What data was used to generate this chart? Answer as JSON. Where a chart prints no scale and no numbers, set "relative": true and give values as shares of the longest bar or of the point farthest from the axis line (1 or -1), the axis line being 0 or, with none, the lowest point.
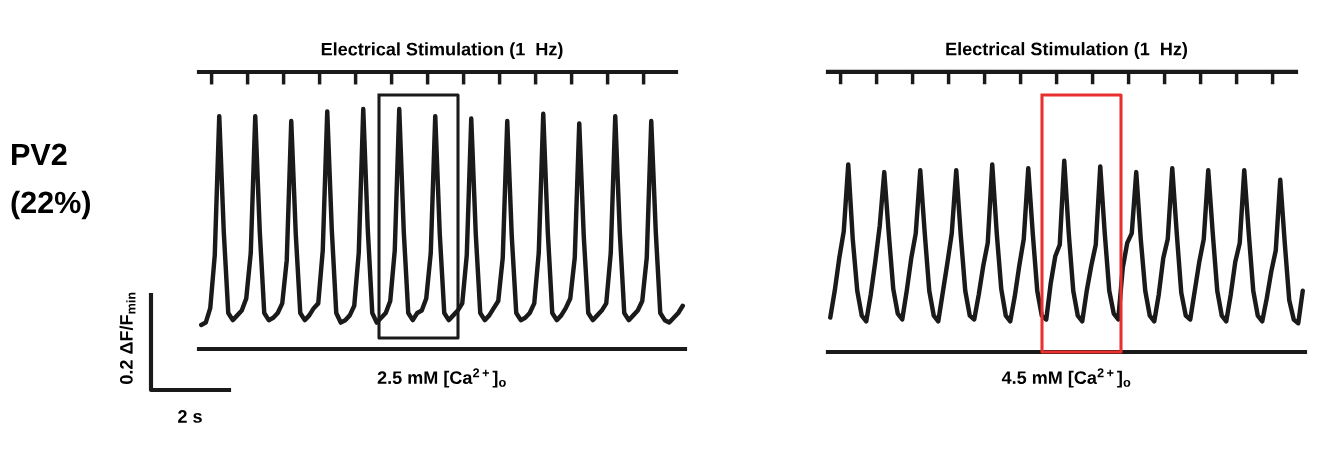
{
  "chart_data": [
    {
      "type": "line",
      "title": "Electrical Stimulation (1  Hz)",
      "relative": true,
      "marker": "none",
      "line_style": "solid",
      "annotations": [
        "2.5 mM [Ca$^{2+}$]$_{o}$",
        "PV2",
        "(22%)",
        "0.2 ΔF/F$_{min}$",
        "2 s"
      ],
      "categories": [
        null,
        null,
        null,
        null,
        null,
        null,
        null,
        null,
        null,
        null,
        null,
        null,
        null,
        null,
        null,
        null,
        null,
        null,
        null,
        null,
        null,
        null,
        null,
        null,
        null,
        null,
        null,
        null,
        null,
        null,
        null,
        null,
        null,
        null,
        null,
        null,
        null,
        null,
        null,
        null,
        null,
        null,
        null,
        null,
        null,
        null,
        null,
        null,
        null,
        null,
        null,
        null,
        null,
        null,
        null,
        null,
        null,
        null,
        null,
        null,
        null,
        null,
        null,
        null,
        null,
        null,
        null,
        null,
        null,
        null,
        null,
        null,
        null,
        null,
        null,
        null,
        null,
        null,
        null,
        null,
        null,
        null,
        null,
        null,
        null,
        null,
        null,
        null,
        null,
        null,
        null,
        null,
        null,
        null,
        null,
        null,
        null,
        null,
        null,
        null,
        null,
        null,
        null,
        null,
        null,
        null,
        null,
        null
      ],
      "series": [
        {
          "color": "#1a1a1a",
          "values": [
            0.1,
            0.11,
            0.17,
            0.39,
            0.97,
            0.49,
            0.15,
            0.12,
            0.14,
            0.16,
            0.21,
            0.4,
            0.97,
            0.49,
            0.15,
            0.12,
            0.13,
            0.15,
            0.19,
            0.37,
            0.95,
            0.48,
            0.15,
            0.12,
            0.14,
            0.17,
            0.19,
            0.41,
            0.99,
            0.5,
            0.15,
            0.11,
            0.12,
            0.14,
            0.18,
            0.4,
            1.0,
            0.5,
            0.15,
            0.11,
            0.13,
            0.15,
            0.2,
            0.41,
            1.0,
            0.49,
            0.15,
            0.12,
            0.15,
            0.16,
            0.21,
            0.4,
            0.97,
            0.48,
            0.15,
            0.12,
            0.14,
            0.16,
            0.19,
            0.39,
            0.96,
            0.48,
            0.15,
            0.12,
            0.14,
            0.17,
            0.2,
            0.38,
            0.95,
            0.47,
            0.15,
            0.12,
            0.13,
            0.15,
            0.19,
            0.4,
            0.98,
            0.49,
            0.15,
            0.12,
            0.14,
            0.17,
            0.21,
            0.38,
            0.94,
            0.47,
            0.15,
            0.12,
            0.14,
            0.16,
            0.19,
            0.4,
            0.97,
            0.49,
            0.15,
            0.12,
            0.14,
            0.16,
            0.2,
            0.38,
            0.95,
            0.49,
            0.15,
            0.12,
            0.11,
            0.13,
            0.15,
            0.18
          ]
        }
      ]
    },
    {
      "type": "line",
      "title": "Electrical Stimulation (1  Hz)",
      "relative": true,
      "marker": "none",
      "line_style": "solid",
      "annotations": [
        "4.5 mM [Ca$^{2+}$]$_{o}$"
      ],
      "categories": [
        null,
        null,
        null,
        null,
        null,
        null,
        null,
        null,
        null,
        null,
        null,
        null,
        null,
        null,
        null,
        null,
        null,
        null,
        null,
        null,
        null,
        null,
        null,
        null,
        null,
        null,
        null,
        null,
        null,
        null,
        null,
        null,
        null,
        null,
        null,
        null,
        null,
        null,
        null,
        null,
        null,
        null,
        null,
        null,
        null,
        null,
        null,
        null,
        null,
        null,
        null,
        null,
        null,
        null,
        null,
        null,
        null,
        null,
        null,
        null,
        null,
        null,
        null,
        null,
        null,
        null,
        null,
        null,
        null,
        null,
        null,
        null,
        null,
        null,
        null,
        null,
        null,
        null,
        null,
        null,
        null,
        null,
        null,
        null,
        null,
        null,
        null,
        null,
        null,
        null,
        null,
        null,
        null,
        null,
        null,
        null,
        null,
        null,
        null,
        null,
        null,
        null,
        null,
        null,
        null,
        null
      ],
      "series": [
        {
          "color": "#1a1a1a",
          "values": [
            0.18,
            0.32,
            0.49,
            0.63,
            0.98,
            0.59,
            0.32,
            0.19,
            0.16,
            0.3,
            0.47,
            0.66,
            0.94,
            0.62,
            0.33,
            0.2,
            0.17,
            0.32,
            0.49,
            0.62,
            0.95,
            0.62,
            0.32,
            0.19,
            0.16,
            0.31,
            0.46,
            0.62,
            0.95,
            0.61,
            0.32,
            0.19,
            0.17,
            0.3,
            0.45,
            0.57,
            0.98,
            0.62,
            0.33,
            0.19,
            0.16,
            0.29,
            0.45,
            0.59,
            0.96,
            0.62,
            0.32,
            0.19,
            0.17,
            0.36,
            0.5,
            0.56,
            1.0,
            0.62,
            0.32,
            0.19,
            0.16,
            0.32,
            0.45,
            0.56,
            0.97,
            0.62,
            0.32,
            0.2,
            0.17,
            0.44,
            0.57,
            0.62,
            0.94,
            0.59,
            0.32,
            0.19,
            0.16,
            0.3,
            0.49,
            0.59,
            0.96,
            0.62,
            0.31,
            0.19,
            0.17,
            0.32,
            0.47,
            0.59,
            0.95,
            0.62,
            0.32,
            0.19,
            0.16,
            0.3,
            0.47,
            0.57,
            0.95,
            0.62,
            0.32,
            0.19,
            0.16,
            0.28,
            0.42,
            0.53,
            0.9,
            0.57,
            0.27,
            0.17,
            0.15,
            0.32
          ]
        }
      ]
    }
  ]
}
